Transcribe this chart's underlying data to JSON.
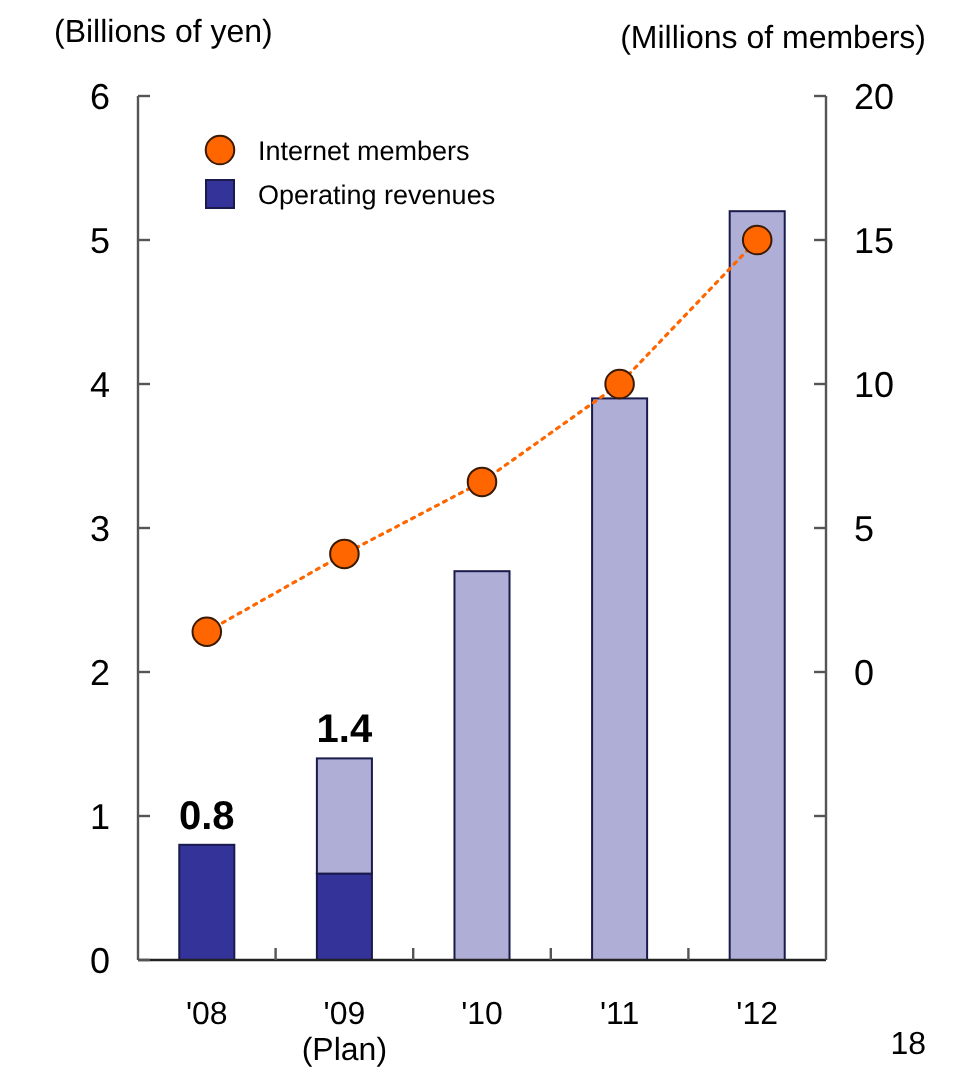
{
  "chart_data": {
    "type": "bar",
    "ylabel": "(Billions of yen)",
    "y2label": "(Millions of members)",
    "categories": [
      "'08",
      "'09\n(Plan)",
      "'10",
      "'11",
      "'12"
    ],
    "stacked": true,
    "series": [
      {
        "name": "Internet members",
        "type": "line",
        "axis": "y2",
        "color": "#ff6600",
        "values": [
          1.4,
          4.1,
          6.6,
          10,
          15
        ]
      },
      {
        "name": "Operating revenues",
        "color": "#333399",
        "values": [
          0.8,
          0.6,
          null,
          null,
          null
        ]
      },
      {
        "color": "#aeaed6",
        "values": [
          null,
          0.8,
          2.7,
          3.9,
          5.2
        ]
      }
    ],
    "ylim": [
      0,
      6
    ],
    "yticks": [
      0,
      1,
      2,
      3,
      4,
      5,
      6
    ],
    "y2lim": [
      -10,
      20
    ],
    "y2ticks": [
      {
        "value": -5,
        "label": null
      },
      0,
      5,
      10,
      15,
      20
    ],
    "totals": [
      "0.8",
      "1.4",
      null,
      null,
      null
    ],
    "marker": "circle",
    "line_style": "dotted",
    "legend": "top left",
    "annotations": [
      "18"
    ]
  }
}
